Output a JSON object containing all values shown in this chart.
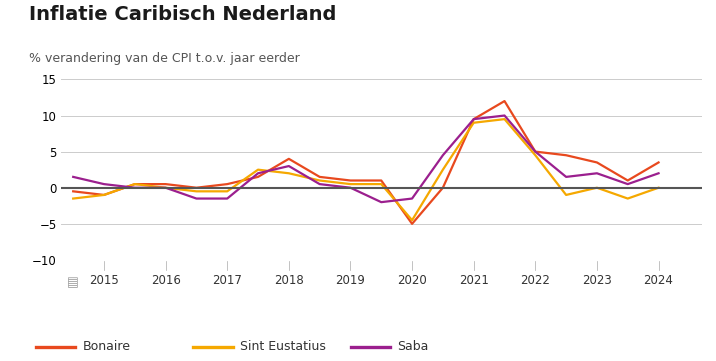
{
  "title": "Inflatie Caribisch Nederland",
  "subtitle": "% verandering van de CPI t.o.v. jaar eerder",
  "ylim": [
    -10,
    15
  ],
  "yticks": [
    -10,
    -5,
    0,
    5,
    10,
    15
  ],
  "background_color": "#ffffff",
  "colors": {
    "Bonaire": "#e8491e",
    "Sint Eustatius": "#f5a800",
    "Saba": "#9b1f8e"
  },
  "x_labels": [
    "2015",
    "2016",
    "2017",
    "2018",
    "2019",
    "2020",
    "2021",
    "2022",
    "2023",
    "2024"
  ],
  "x_tick_positions": [
    1,
    2,
    3,
    4,
    5,
    6,
    7,
    8,
    9,
    10
  ],
  "xlim": [
    0.3,
    10.7
  ],
  "series": {
    "Bonaire": {
      "x": [
        0.5,
        1.0,
        1.5,
        2.0,
        2.5,
        3.0,
        3.5,
        4.0,
        4.5,
        5.0,
        5.5,
        6.0,
        6.5,
        7.0,
        7.5,
        8.0,
        8.5,
        9.0,
        9.5,
        10.0
      ],
      "y": [
        -0.5,
        -1.0,
        0.5,
        0.5,
        0.0,
        0.5,
        1.5,
        4.0,
        1.5,
        1.0,
        1.0,
        -5.0,
        0.0,
        9.5,
        12.0,
        5.0,
        4.5,
        3.5,
        1.0,
        3.5
      ]
    },
    "Sint Eustatius": {
      "x": [
        0.5,
        1.0,
        1.5,
        2.0,
        2.5,
        3.0,
        3.5,
        4.0,
        4.5,
        5.0,
        5.5,
        6.0,
        6.5,
        7.0,
        7.5,
        8.0,
        8.5,
        9.0,
        9.5,
        10.0
      ],
      "y": [
        -1.5,
        -1.0,
        0.5,
        0.0,
        -0.5,
        -0.5,
        2.5,
        2.0,
        1.0,
        0.5,
        0.5,
        -4.5,
        2.5,
        9.0,
        9.5,
        4.5,
        -1.0,
        0.0,
        -1.5,
        0.0
      ]
    },
    "Saba": {
      "x": [
        0.5,
        1.0,
        1.5,
        2.0,
        2.5,
        3.0,
        3.5,
        4.0,
        4.5,
        5.0,
        5.5,
        6.0,
        6.5,
        7.0,
        7.5,
        8.0,
        8.5,
        9.0,
        9.5,
        10.0
      ],
      "y": [
        1.5,
        0.5,
        0.0,
        0.0,
        -1.5,
        -1.5,
        2.0,
        3.0,
        0.5,
        0.0,
        -2.0,
        -1.5,
        4.5,
        9.5,
        10.0,
        5.0,
        1.5,
        2.0,
        0.5,
        2.0
      ]
    }
  },
  "legend_items": [
    "Bonaire",
    "Sint Eustatius",
    "Saba"
  ],
  "title_fontsize": 14,
  "subtitle_fontsize": 9,
  "tick_fontsize": 8.5,
  "legend_fontsize": 9,
  "linewidth": 1.6,
  "zero_line_color": "#555555",
  "grid_color": "#cccccc",
  "bottom_panel_color": "#e8e8e8"
}
